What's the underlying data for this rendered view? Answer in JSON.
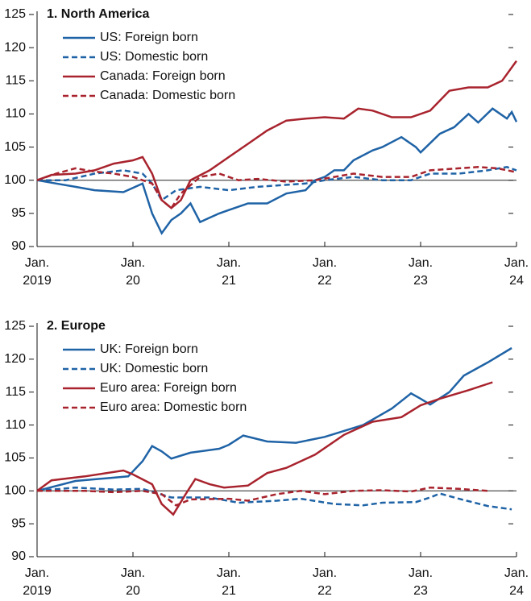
{
  "chart_data": [
    {
      "type": "line",
      "title": "1. North America",
      "xlim": [
        2019,
        2024
      ],
      "xticks": [
        {
          "value": 2019,
          "label": "Jan.\n2019"
        },
        {
          "value": 2020,
          "label": "Jan.\n20"
        },
        {
          "value": 2021,
          "label": "Jan.\n21"
        },
        {
          "value": 2022,
          "label": "Jan.\n22"
        },
        {
          "value": 2023,
          "label": "Jan.\n23"
        },
        {
          "value": 2024,
          "label": "Jan.\n24"
        }
      ],
      "ylim": [
        90,
        125
      ],
      "yticks": [
        90,
        95,
        100,
        105,
        110,
        115,
        120,
        125
      ],
      "reference_line": 100,
      "series": [
        {
          "name": "US: Foreign born",
          "color": "#1f63a6",
          "style": "solid",
          "x": [
            2019,
            2019.2,
            2019.4,
            2019.6,
            2019.9,
            2020.1,
            2020.2,
            2020.3,
            2020.4,
            2020.5,
            2020.6,
            2020.7,
            2020.9,
            2021.0,
            2021.2,
            2021.4,
            2021.6,
            2021.8,
            2021.9,
            2022.0,
            2022.1,
            2022.2,
            2022.3,
            2022.5,
            2022.6,
            2022.8,
            2022.95,
            2023.0,
            2023.2,
            2023.35,
            2023.5,
            2023.6,
            2023.75,
            2023.9,
            2023.95,
            2024.0
          ],
          "values": [
            100,
            99.5,
            99,
            98.5,
            98.2,
            99.5,
            95,
            92,
            94,
            95,
            96.5,
            93.7,
            95,
            95.5,
            96.5,
            96.5,
            98,
            98.5,
            100,
            100.5,
            101.5,
            101.5,
            103,
            104.5,
            105,
            106.5,
            105,
            104.2,
            107,
            108,
            110,
            108.7,
            110.8,
            109.3,
            110.3,
            108.8
          ]
        },
        {
          "name": "US: Domestic born",
          "color": "#1f63a6",
          "style": "dashed",
          "x": [
            2019,
            2019.3,
            2019.6,
            2019.9,
            2020.1,
            2020.2,
            2020.3,
            2020.45,
            2020.7,
            2021.0,
            2021.3,
            2021.8,
            2022.0,
            2022.3,
            2022.6,
            2022.9,
            2023.1,
            2023.4,
            2023.7,
            2023.9,
            2024.0
          ],
          "values": [
            100,
            100,
            101,
            101.5,
            101,
            99.5,
            97,
            98.5,
            99,
            98.5,
            99,
            99.5,
            100,
            100.5,
            100,
            100,
            101,
            101,
            101.5,
            102,
            101.5
          ]
        },
        {
          "name": "Canada: Foreign born",
          "color": "#a8232d",
          "style": "solid",
          "x": [
            2019,
            2019.15,
            2019.4,
            2019.6,
            2019.8,
            2020.0,
            2020.1,
            2020.2,
            2020.3,
            2020.4,
            2020.5,
            2020.6,
            2020.8,
            2021.0,
            2021.2,
            2021.4,
            2021.6,
            2021.8,
            2022.0,
            2022.2,
            2022.35,
            2022.5,
            2022.7,
            2022.9,
            2023.1,
            2023.3,
            2023.5,
            2023.7,
            2023.85,
            2024.0
          ],
          "values": [
            100,
            100.8,
            101,
            101.5,
            102.5,
            103,
            103.5,
            101,
            97,
            95.8,
            97,
            100,
            101.5,
            103.5,
            105.5,
            107.5,
            109,
            109.3,
            109.5,
            109.3,
            110.8,
            110.5,
            109.5,
            109.5,
            110.5,
            113.5,
            114,
            114,
            115,
            118
          ]
        },
        {
          "name": "Canada: Domestic born",
          "color": "#a8232d",
          "style": "dashed",
          "x": [
            2019,
            2019.2,
            2019.4,
            2019.6,
            2019.8,
            2020.0,
            2020.2,
            2020.3,
            2020.4,
            2020.5,
            2020.7,
            2020.9,
            2021.1,
            2021.3,
            2021.6,
            2021.9,
            2022.1,
            2022.3,
            2022.6,
            2022.9,
            2023.1,
            2023.4,
            2023.6,
            2023.8,
            2024.0
          ],
          "values": [
            100,
            101,
            101.8,
            101.3,
            101,
            100.5,
            99.5,
            97,
            95.8,
            98,
            100.5,
            101,
            100,
            100.2,
            99.8,
            100,
            100.5,
            101,
            100.5,
            100.5,
            101.5,
            101.8,
            102,
            101.8,
            101.2
          ]
        }
      ]
    },
    {
      "type": "line",
      "title": "2. Europe",
      "xlim": [
        2019,
        2024
      ],
      "xticks": [
        {
          "value": 2019,
          "label": "Jan.\n2019"
        },
        {
          "value": 2020,
          "label": "Jan.\n20"
        },
        {
          "value": 2021,
          "label": "Jan.\n21"
        },
        {
          "value": 2022,
          "label": "Jan.\n22"
        },
        {
          "value": 2023,
          "label": "Jan.\n23"
        },
        {
          "value": 2024,
          "label": "Jan.\n24"
        }
      ],
      "ylim": [
        90,
        125
      ],
      "yticks": [
        90,
        95,
        100,
        105,
        110,
        115,
        120,
        125
      ],
      "reference_line": 100,
      "series": [
        {
          "name": "UK: Foreign born",
          "color": "#1f63a6",
          "style": "solid",
          "x": [
            2019,
            2019.4,
            2019.8,
            2019.95,
            2020.1,
            2020.2,
            2020.3,
            2020.4,
            2020.6,
            2020.9,
            2021.0,
            2021.15,
            2021.4,
            2021.7,
            2022.0,
            2022.4,
            2022.7,
            2022.9,
            2023.0,
            2023.1,
            2023.3,
            2023.45,
            2023.7,
            2023.95
          ],
          "values": [
            100,
            101.5,
            102,
            102.2,
            104.5,
            106.8,
            106,
            104.9,
            105.8,
            106.4,
            107,
            108.4,
            107.5,
            107.3,
            108.2,
            110,
            112.5,
            114.8,
            114,
            113.1,
            115,
            117.5,
            119.5,
            121.7
          ]
        },
        {
          "name": "UK: Domestic born",
          "color": "#1f63a6",
          "style": "dashed",
          "x": [
            2019,
            2019.4,
            2019.8,
            2020.1,
            2020.4,
            2020.8,
            2021.1,
            2021.5,
            2021.75,
            2022.1,
            2022.4,
            2022.6,
            2022.95,
            2023.1,
            2023.2,
            2023.4,
            2023.7,
            2023.95
          ],
          "values": [
            100,
            100.5,
            100.2,
            100.3,
            99,
            99,
            98.2,
            98.5,
            98.8,
            98,
            97.8,
            98.2,
            98.3,
            99,
            99.6,
            98.8,
            97.7,
            97.2
          ]
        },
        {
          "name": "Euro area: Foreign born",
          "color": "#a8232d",
          "style": "solid",
          "x": [
            2019,
            2019.15,
            2019.5,
            2019.9,
            2020.0,
            2020.2,
            2020.3,
            2020.42,
            2020.55,
            2020.65,
            2020.8,
            2020.95,
            2021.2,
            2021.4,
            2021.6,
            2021.9,
            2022.2,
            2022.5,
            2022.8,
            2023.0,
            2023.2,
            2023.5,
            2023.75
          ],
          "values": [
            100,
            101.6,
            102.2,
            103.1,
            102.5,
            101,
            98,
            96.4,
            99.5,
            101.8,
            101,
            100.5,
            100.8,
            102.7,
            103.5,
            105.5,
            108.5,
            110.5,
            111.2,
            113,
            114,
            115.3,
            116.5
          ]
        },
        {
          "name": "Euro area: Domestic born",
          "color": "#a8232d",
          "style": "dashed",
          "x": [
            2019,
            2019.5,
            2019.8,
            2020.1,
            2020.3,
            2020.45,
            2020.6,
            2021.0,
            2021.2,
            2021.5,
            2021.75,
            2022.0,
            2022.3,
            2022.6,
            2022.9,
            2023.1,
            2023.4,
            2023.7
          ],
          "values": [
            100,
            100,
            99.8,
            100,
            99.5,
            97.8,
            98.7,
            98.8,
            98.5,
            99.5,
            100,
            99.5,
            100,
            100.1,
            99.9,
            100.5,
            100.3,
            100
          ]
        }
      ]
    }
  ]
}
